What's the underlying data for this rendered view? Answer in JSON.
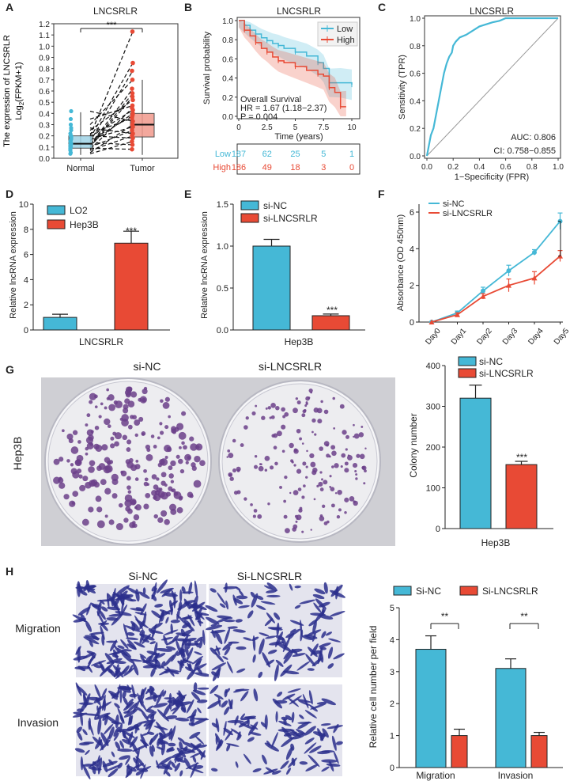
{
  "colors": {
    "cyan": "#45b8d6",
    "red": "#e84a35",
    "lightBlue": "#9fd3e6",
    "lightRed": "#f29a8c",
    "plate": "#ededf0",
    "colony": "#6b3f8a",
    "cellStain": "#2c2f8c",
    "cellBg": "#e4e4ee"
  },
  "panels": {
    "A": {
      "letter": "A",
      "title": "LNCSRLR",
      "sig": "***"
    },
    "B": {
      "letter": "B",
      "title": "LNCSRLR",
      "legend": [
        "Low",
        "High"
      ],
      "survival_label": "Overall Survival",
      "hr": "HR = 1.67 (1.18−2.37)",
      "pvalue": "P = 0.004",
      "risk_low_label": "Low",
      "risk_high_label": "High",
      "risk_low": [
        "187",
        "62",
        "25",
        "5",
        "1"
      ],
      "risk_high": [
        "186",
        "49",
        "18",
        "3",
        "0"
      ]
    },
    "C": {
      "letter": "C",
      "title": "LNCSRLR",
      "auc": "AUC: 0.806",
      "ci": "CI: 0.758−0.855"
    },
    "D": {
      "letter": "D",
      "sig": "***"
    },
    "E": {
      "letter": "E",
      "sig": "***"
    },
    "F": {
      "letter": "F",
      "sig": "***"
    },
    "G": {
      "letter": "G",
      "label_nc": "si-NC",
      "label_kd": "si-LNCSRLR",
      "row_label": "Hep3B",
      "sig": "***"
    },
    "H": {
      "letter": "H",
      "col_nc": "Si-NC",
      "col_kd": "Si-LNCSRLR",
      "row1": "Migration",
      "row2": "Invasion",
      "sig1": "**",
      "sig2": "**"
    }
  },
  "chart_data": [
    {
      "panel": "A",
      "type": "box",
      "title": "LNCSRLR",
      "ylabel_main": "The expression of LNCSRLR",
      "ylabel_pre": "Log",
      "ylabel_sub": "2",
      "ylabel_post": "(FPKM+1)",
      "categories": [
        "Normal",
        "Tumor"
      ],
      "ylim": [
        0,
        1.2
      ],
      "yticks": [
        0,
        0.1,
        0.2,
        0.3,
        0.4,
        0.5,
        0.6,
        0.7,
        0.8,
        0.9,
        1.0,
        1.1,
        1.2
      ],
      "boxes": [
        {
          "name": "Normal",
          "q1": 0.09,
          "median": 0.13,
          "q3": 0.2,
          "min": 0.03,
          "max": 0.41
        },
        {
          "name": "Tumor",
          "q1": 0.19,
          "median": 0.3,
          "q3": 0.4,
          "min": 0.03,
          "max": 0.7
        }
      ],
      "pairs": [
        [
          0.12,
          0.62
        ],
        [
          0.2,
          1.13
        ],
        [
          0.18,
          0.85
        ],
        [
          0.15,
          0.78
        ],
        [
          0.1,
          0.55
        ],
        [
          0.25,
          0.52
        ],
        [
          0.08,
          0.45
        ],
        [
          0.3,
          0.7
        ],
        [
          0.13,
          0.4
        ],
        [
          0.22,
          0.36
        ],
        [
          0.05,
          0.3
        ],
        [
          0.17,
          0.28
        ],
        [
          0.1,
          0.25
        ],
        [
          0.35,
          0.47
        ],
        [
          0.42,
          0.33
        ],
        [
          0.07,
          0.2
        ],
        [
          0.14,
          0.12
        ],
        [
          0.27,
          0.22
        ],
        [
          0.04,
          0.15
        ],
        [
          0.16,
          0.38
        ],
        [
          0.2,
          0.18
        ],
        [
          0.09,
          0.08
        ],
        [
          0.11,
          0.58
        ],
        [
          0.19,
          0.43
        ]
      ]
    },
    {
      "panel": "B",
      "type": "line",
      "title": "LNCSRLR",
      "xlabel": "Time (years)",
      "ylabel": "Survival probability",
      "xlim": [
        0,
        10
      ],
      "ylim": [
        0,
        1
      ],
      "xticks": [
        0,
        2.5,
        5,
        7.5,
        10
      ],
      "xtick_labels": [
        "0",
        "2.5",
        "5",
        "7.5",
        "10"
      ],
      "yticks": [
        0,
        0.2,
        0.4,
        0.6,
        0.8,
        1.0
      ],
      "ytick_labels": [
        "0.0",
        "0.2",
        "0.4",
        "0.6",
        "0.8",
        "1.0"
      ],
      "series": [
        {
          "name": "Low",
          "x": [
            0,
            0.5,
            1,
            1.5,
            2,
            2.5,
            3,
            3.5,
            4,
            5,
            6,
            7,
            7.5,
            8,
            9,
            10
          ],
          "y": [
            1,
            0.95,
            0.9,
            0.86,
            0.82,
            0.79,
            0.76,
            0.74,
            0.71,
            0.67,
            0.63,
            0.56,
            0.5,
            0.35,
            0.35,
            0.33
          ]
        },
        {
          "name": "High",
          "x": [
            0,
            0.5,
            1,
            1.5,
            2,
            2.5,
            3,
            3.5,
            4,
            5,
            6,
            7,
            7.5,
            8,
            8.5,
            9,
            9.5
          ],
          "y": [
            1,
            0.9,
            0.84,
            0.77,
            0.71,
            0.67,
            0.62,
            0.58,
            0.56,
            0.52,
            0.48,
            0.44,
            0.42,
            0.3,
            0.25,
            0.1,
            0.1
          ]
        }
      ]
    },
    {
      "panel": "C",
      "type": "line",
      "title": "LNCSRLR",
      "xlabel": "1−Specificity (FPR)",
      "ylabel": "Sensitivity (TPR)",
      "xlim": [
        0,
        1
      ],
      "ylim": [
        0,
        1
      ],
      "xticks": [
        0,
        0.2,
        0.4,
        0.6,
        0.8,
        1.0
      ],
      "xtick_labels": [
        "0.0",
        "0.2",
        "0.4",
        "0.6",
        "0.8",
        "1.0"
      ],
      "yticks": [
        0,
        0.2,
        0.4,
        0.6,
        0.8,
        1.0
      ],
      "ytick_labels": [
        "0.0",
        "0.2",
        "0.4",
        "0.6",
        "0.8",
        "1.0"
      ],
      "series": [
        {
          "name": "ROC",
          "x": [
            0,
            0.01,
            0.02,
            0.03,
            0.05,
            0.07,
            0.09,
            0.1,
            0.12,
            0.13,
            0.15,
            0.17,
            0.19,
            0.2,
            0.22,
            0.25,
            0.3,
            0.35,
            0.4,
            0.5,
            0.55,
            0.6,
            0.7,
            0.8,
            1.0
          ],
          "y": [
            0,
            0.05,
            0.1,
            0.15,
            0.2,
            0.3,
            0.4,
            0.45,
            0.55,
            0.6,
            0.67,
            0.72,
            0.75,
            0.8,
            0.83,
            0.86,
            0.88,
            0.91,
            0.94,
            0.97,
            0.98,
            1.0,
            1.0,
            1.0,
            1.0
          ]
        }
      ]
    },
    {
      "panel": "D",
      "type": "bar",
      "ylabel": "Relative lncRNA expression",
      "xlabel": "LNCSRLR",
      "ylim": [
        0,
        10
      ],
      "yticks": [
        0,
        2,
        4,
        6,
        8,
        10
      ],
      "legend": [
        "LO2",
        "Hep3B"
      ],
      "values": [
        1,
        6.9
      ],
      "errors": [
        0.25,
        0.95
      ]
    },
    {
      "panel": "E",
      "type": "bar",
      "ylabel": "Relative lncRNA expression",
      "xlabel": "Hep3B",
      "ylim": [
        0,
        1.5
      ],
      "yticks": [
        0,
        0.5,
        1.0,
        1.5
      ],
      "ytick_labels": [
        "0.0",
        "0.5",
        "1.0",
        "1.5"
      ],
      "legend": [
        "si-NC",
        "si-LNCSRLR"
      ],
      "values": [
        1.0,
        0.17
      ],
      "errors": [
        0.08,
        0.02
      ]
    },
    {
      "panel": "F",
      "type": "line",
      "ylabel": "Absorbance (OD 450nm)",
      "categories": [
        "Day0",
        "Day1",
        "Day2",
        "Day3",
        "Day4",
        "Day5"
      ],
      "ylim": [
        0,
        6
      ],
      "yticks": [
        0,
        2,
        4,
        6
      ],
      "series": [
        {
          "name": "si-NC",
          "values": [
            0,
            0.5,
            1.7,
            2.8,
            3.8,
            5.5
          ],
          "errors": [
            0,
            0.1,
            0.2,
            0.3,
            0.15,
            0.45
          ]
        },
        {
          "name": "si-LNCSRLR",
          "values": [
            0,
            0.4,
            1.4,
            2.0,
            2.4,
            3.6
          ],
          "errors": [
            0,
            0.1,
            0.15,
            0.35,
            0.35,
            0.3
          ]
        }
      ]
    },
    {
      "panel": "G",
      "type": "bar",
      "ylabel": "Colony number",
      "xlabel": "Hep3B",
      "ylim": [
        0,
        400
      ],
      "yticks": [
        0,
        100,
        200,
        300,
        400
      ],
      "legend": [
        "si-NC",
        "si-LNCSRLR"
      ],
      "values": [
        320,
        157
      ],
      "errors": [
        32,
        8
      ]
    },
    {
      "panel": "H",
      "type": "bar",
      "ylabel": "Relative cell number per field",
      "categories": [
        "Migration",
        "Invasion"
      ],
      "ylim": [
        0,
        5
      ],
      "yticks": [
        0,
        1,
        2,
        3,
        4,
        5
      ],
      "legend": [
        "Si-NC",
        "Si-LNCSRLR"
      ],
      "series": [
        {
          "name": "Si-NC",
          "values": [
            3.7,
            3.1
          ],
          "errors": [
            0.42,
            0.3
          ]
        },
        {
          "name": "Si-LNCSRLR",
          "values": [
            1.0,
            1.0
          ],
          "errors": [
            0.2,
            0.1
          ]
        }
      ]
    }
  ]
}
